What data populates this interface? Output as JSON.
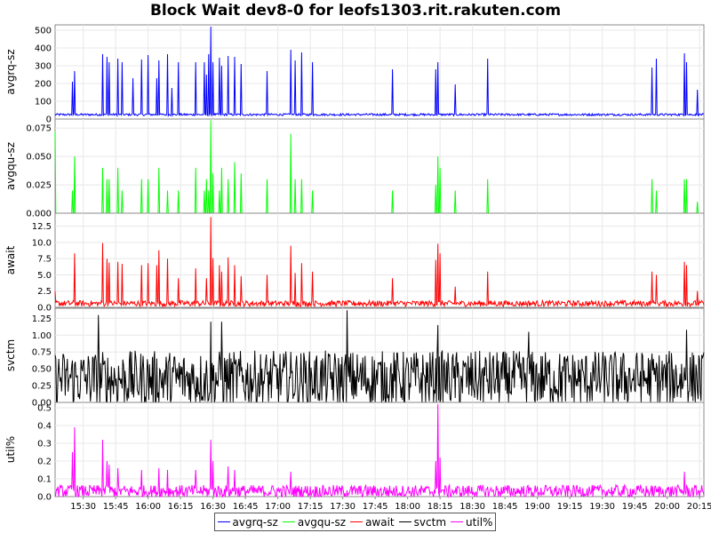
{
  "chart_data": {
    "type": "line",
    "title": "Block Wait dev8-0 for leofs1303.rit.rakuten.com",
    "x_range": [
      "15:17",
      "20:17"
    ],
    "x_ticks": [
      "15:30",
      "15:45",
      "16:00",
      "16:15",
      "16:30",
      "16:45",
      "17:00",
      "17:15",
      "17:30",
      "17:45",
      "18:00",
      "18:15",
      "18:30",
      "18:45",
      "19:00",
      "19:15",
      "19:30",
      "19:45",
      "20:00",
      "20:15"
    ],
    "grid": true,
    "legend_position": "bottom",
    "panels": [
      {
        "name": "avgrq-sz",
        "ylabel": "avgrq-sz",
        "color": "#0000ff",
        "ylim": [
          0,
          530
        ],
        "yticks": [
          "0",
          "100",
          "200",
          "300",
          "400",
          "500"
        ],
        "baseline": 25,
        "noise": 12,
        "spikes": [
          [
            "15:26",
            270
          ],
          [
            "15:25",
            210
          ],
          [
            "15:39",
            365
          ],
          [
            "15:41",
            350
          ],
          [
            "15:42",
            320
          ],
          [
            "15:46",
            340
          ],
          [
            "15:48",
            320
          ],
          [
            "15:53",
            230
          ],
          [
            "15:57",
            335
          ],
          [
            "16:00",
            360
          ],
          [
            "16:04",
            230
          ],
          [
            "16:05",
            330
          ],
          [
            "16:09",
            365
          ],
          [
            "16:11",
            175
          ],
          [
            "16:14",
            320
          ],
          [
            "16:22",
            320
          ],
          [
            "16:26",
            320
          ],
          [
            "16:27",
            250
          ],
          [
            "16:28",
            365
          ],
          [
            "16:29",
            520
          ],
          [
            "16:30",
            320
          ],
          [
            "16:33",
            345
          ],
          [
            "16:34",
            300
          ],
          [
            "16:37",
            355
          ],
          [
            "16:40",
            350
          ],
          [
            "16:43",
            310
          ],
          [
            "16:55",
            270
          ],
          [
            "17:06",
            390
          ],
          [
            "17:08",
            330
          ],
          [
            "17:11",
            375
          ],
          [
            "17:16",
            320
          ],
          [
            "17:53",
            280
          ],
          [
            "18:13",
            280
          ],
          [
            "18:14",
            320
          ],
          [
            "18:22",
            195
          ],
          [
            "18:37",
            340
          ],
          [
            "19:53",
            290
          ],
          [
            "19:55",
            340
          ],
          [
            "20:08",
            370
          ],
          [
            "20:09",
            320
          ],
          [
            "20:14",
            165
          ]
        ]
      },
      {
        "name": "avgqu-sz",
        "ylabel": "avgqu-sz",
        "color": "#00ff00",
        "ylim": [
          0,
          0.083
        ],
        "yticks": [
          "0.000",
          "0.025",
          "0.050",
          "0.075"
        ],
        "baseline": 0,
        "noise": 0,
        "spikes": [
          [
            "15:17",
            0.072
          ],
          [
            "15:25",
            0.02
          ],
          [
            "15:26",
            0.05
          ],
          [
            "15:39",
            0.04
          ],
          [
            "15:41",
            0.03
          ],
          [
            "15:42",
            0.03
          ],
          [
            "15:46",
            0.04
          ],
          [
            "15:48",
            0.02
          ],
          [
            "15:57",
            0.03
          ],
          [
            "16:00",
            0.03
          ],
          [
            "16:05",
            0.04
          ],
          [
            "16:09",
            0.02
          ],
          [
            "16:14",
            0.02
          ],
          [
            "16:22",
            0.04
          ],
          [
            "16:26",
            0.02
          ],
          [
            "16:27",
            0.03
          ],
          [
            "16:28",
            0.02
          ],
          [
            "16:29",
            0.082
          ],
          [
            "16:30",
            0.035
          ],
          [
            "16:33",
            0.02
          ],
          [
            "16:34",
            0.04
          ],
          [
            "16:37",
            0.03
          ],
          [
            "16:40",
            0.045
          ],
          [
            "16:43",
            0.035
          ],
          [
            "16:55",
            0.03
          ],
          [
            "17:06",
            0.07
          ],
          [
            "17:08",
            0.03
          ],
          [
            "17:11",
            0.03
          ],
          [
            "17:16",
            0.02
          ],
          [
            "17:53",
            0.02
          ],
          [
            "18:13",
            0.025
          ],
          [
            "18:14",
            0.05
          ],
          [
            "18:15",
            0.04
          ],
          [
            "18:22",
            0.02
          ],
          [
            "18:37",
            0.03
          ],
          [
            "19:53",
            0.03
          ],
          [
            "19:55",
            0.02
          ],
          [
            "20:08",
            0.03
          ],
          [
            "20:09",
            0.03
          ],
          [
            "20:14",
            0.01
          ]
        ]
      },
      {
        "name": "await",
        "ylabel": "await",
        "color": "#ff0000",
        "ylim": [
          0,
          14.5
        ],
        "yticks": [
          "0.0",
          "2.5",
          "5.0",
          "7.5",
          "10.0",
          "12.5"
        ],
        "baseline": 0.6,
        "noise": 0.9,
        "spikes": [
          [
            "15:17",
            2.5
          ],
          [
            "15:26",
            8.3
          ],
          [
            "15:39",
            9.9
          ],
          [
            "15:41",
            7.5
          ],
          [
            "15:42",
            6.9
          ],
          [
            "15:46",
            7.0
          ],
          [
            "15:48",
            6.7
          ],
          [
            "15:57",
            6.5
          ],
          [
            "16:00",
            6.8
          ],
          [
            "16:04",
            6.5
          ],
          [
            "16:05",
            8.8
          ],
          [
            "16:09",
            7.5
          ],
          [
            "16:14",
            4.5
          ],
          [
            "16:22",
            6.0
          ],
          [
            "16:27",
            4.5
          ],
          [
            "16:29",
            13.9
          ],
          [
            "16:30",
            7.6
          ],
          [
            "16:33",
            6.5
          ],
          [
            "16:34",
            5.5
          ],
          [
            "16:37",
            7.7
          ],
          [
            "16:40",
            6.5
          ],
          [
            "16:43",
            4.8
          ],
          [
            "16:55",
            5.0
          ],
          [
            "17:06",
            9.5
          ],
          [
            "17:08",
            5.3
          ],
          [
            "17:11",
            6.8
          ],
          [
            "17:16",
            5.5
          ],
          [
            "17:53",
            4.5
          ],
          [
            "18:13",
            7.3
          ],
          [
            "18:14",
            9.8
          ],
          [
            "18:15",
            8.3
          ],
          [
            "18:22",
            3.2
          ],
          [
            "18:37",
            5.5
          ],
          [
            "19:53",
            5.5
          ],
          [
            "19:55",
            5.0
          ],
          [
            "20:08",
            7.0
          ],
          [
            "20:09",
            6.5
          ],
          [
            "20:14",
            2.5
          ]
        ]
      },
      {
        "name": "svctm",
        "ylabel": "svctm",
        "color": "#000000",
        "ylim": [
          0,
          1.4
        ],
        "yticks": [
          "0.00",
          "0.25",
          "0.50",
          "0.75",
          "1.00",
          "1.25"
        ],
        "baseline": 0.35,
        "noise": 0.7,
        "spikes": [
          [
            "15:37",
            1.3
          ],
          [
            "16:29",
            1.2
          ],
          [
            "16:34",
            1.2
          ],
          [
            "17:32",
            1.37
          ],
          [
            "18:14",
            1.15
          ],
          [
            "18:56",
            1.05
          ],
          [
            "20:09",
            1.08
          ]
        ]
      },
      {
        "name": "util%",
        "ylabel": "util%",
        "color": "#ff00ff",
        "ylim": [
          0,
          0.53
        ],
        "yticks": [
          "0.0",
          "0.1",
          "0.2",
          "0.3",
          "0.4",
          "0.5"
        ],
        "baseline": 0.03,
        "noise": 0.07,
        "spikes": [
          [
            "15:26",
            0.39
          ],
          [
            "15:25",
            0.25
          ],
          [
            "15:39",
            0.32
          ],
          [
            "15:41",
            0.2
          ],
          [
            "15:42",
            0.18
          ],
          [
            "15:46",
            0.16
          ],
          [
            "15:57",
            0.15
          ],
          [
            "16:05",
            0.16
          ],
          [
            "16:09",
            0.15
          ],
          [
            "16:22",
            0.15
          ],
          [
            "16:29",
            0.32
          ],
          [
            "16:30",
            0.2
          ],
          [
            "16:37",
            0.17
          ],
          [
            "16:40",
            0.15
          ],
          [
            "17:06",
            0.14
          ],
          [
            "18:13",
            0.2
          ],
          [
            "18:14",
            0.52
          ],
          [
            "18:15",
            0.22
          ],
          [
            "20:08",
            0.14
          ]
        ]
      }
    ],
    "series": [
      {
        "name": "avgrq-sz",
        "color": "#0000ff"
      },
      {
        "name": "avgqu-sz",
        "color": "#00ff00"
      },
      {
        "name": "await",
        "color": "#ff0000"
      },
      {
        "name": "svctm",
        "color": "#000000"
      },
      {
        "name": "util%",
        "color": "#ff00ff"
      }
    ]
  }
}
